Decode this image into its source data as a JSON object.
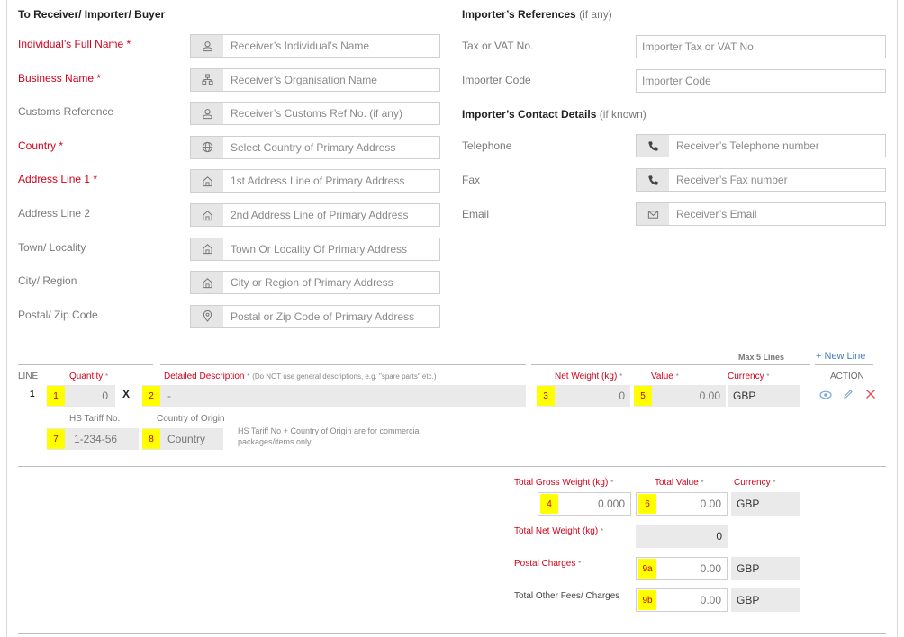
{
  "receiver": {
    "title": "To Receiver/ Importer/ Buyer",
    "fields": [
      {
        "label": "Individual’s Full Name",
        "required": true,
        "placeholder": "Receiver’s Individual’s Name",
        "icon": "user-icon"
      },
      {
        "label": "Business Name",
        "required": true,
        "placeholder": "Receiver’s Organisation Name",
        "icon": "organisation-icon"
      },
      {
        "label": "Customs Reference",
        "required": false,
        "placeholder": "Receiver’s Customs Ref No. (if any)",
        "icon": "user-icon"
      },
      {
        "label": "Country",
        "required": true,
        "placeholder": "Select Country of Primary Address",
        "icon": "globe-icon"
      },
      {
        "label": "Address Line 1",
        "required": true,
        "placeholder": "1st Address Line of Primary Address",
        "icon": "home-icon"
      },
      {
        "label": "Address Line 2",
        "required": false,
        "placeholder": "2nd Address Line of Primary Address",
        "icon": "home-icon"
      },
      {
        "label": "Town/ Locality",
        "required": false,
        "placeholder": "Town Or Locality Of Primary Address",
        "icon": "home-icon"
      },
      {
        "label": "City/ Region",
        "required": false,
        "placeholder": "City or Region of Primary Address",
        "icon": "home-icon"
      },
      {
        "label": "Postal/ Zip Code",
        "required": false,
        "placeholder": "Postal or Zip Code of Primary Address",
        "icon": "location-pin-icon"
      }
    ]
  },
  "importer_refs": {
    "title": "Importer’s References",
    "hint": "(if any)",
    "fields": [
      {
        "label": "Tax or VAT No.",
        "placeholder": "Importer Tax or VAT No."
      },
      {
        "label": "Importer Code",
        "placeholder": "Importer Code"
      }
    ]
  },
  "importer_contact": {
    "title": "Importer’s Contact Details",
    "hint": "(if known)",
    "fields": [
      {
        "label": "Telephone",
        "placeholder": "Receiver’s Telephone number",
        "icon": "phone-icon"
      },
      {
        "label": "Fax",
        "placeholder": "Receiver’s Fax number",
        "icon": "phone-icon"
      },
      {
        "label": "Email",
        "placeholder": "Receiver’s Email",
        "icon": "envelope-icon"
      }
    ]
  },
  "items": {
    "max_lines": "Max 5 Lines",
    "new_line": "+ New Line",
    "headers": {
      "line": "LINE",
      "quantity": "Quantity",
      "description": "Detailed Description",
      "description_note": "(Do NOT use general descriptions, e.g. \"spare parts\" etc.)",
      "net_weight": "Net Weight (kg)",
      "value": "Value",
      "currency": "Currency",
      "action": "ACTION",
      "req_mark": "*"
    },
    "row": {
      "line_no": "1",
      "quantity": "0",
      "times": "X",
      "description": "-",
      "net_weight": "0",
      "value": "0.00",
      "currency": "GBP",
      "hs_label": "HS Tariff No.",
      "hs_value": "1-234-56",
      "origin_label": "Country of Origin",
      "origin_value": "Country",
      "note": "HS Tariff No + Country of Origin are for commercial packages/items only"
    },
    "badges": {
      "qty": "1",
      "desc": "2",
      "net": "3",
      "value": "5",
      "hs": "7",
      "origin": "8"
    }
  },
  "totals": {
    "gross_weight_label": "Total Gross Weight (kg)",
    "total_value_label": "Total Value",
    "currency_label": "Currency",
    "gross_weight": "0.000",
    "total_value": "0.00",
    "currency": "GBP",
    "net_weight_label": "Total Net Weight (kg)",
    "net_weight": "0",
    "postal_label": "Postal Charges",
    "postal_value": "0.00",
    "postal_currency": "GBP",
    "other_label": "Total Other Fees/ Charges",
    "other_value": "0.00",
    "other_currency": "GBP",
    "req_mark": "*",
    "badges": {
      "gross": "4",
      "value": "6",
      "postal": "9a",
      "other": "9b"
    }
  },
  "colors": {
    "required": "#d0021b",
    "badge": "#ffff00",
    "link": "#4a7fc1"
  }
}
